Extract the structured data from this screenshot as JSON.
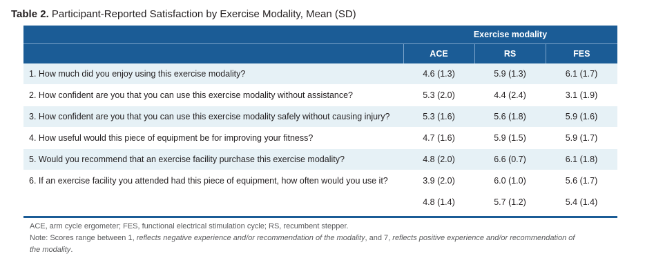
{
  "caption": {
    "label": "Table 2.",
    "title": " Participant-Reported Satisfaction by Exercise Modality, Mean (SD)"
  },
  "header": {
    "group_label": "Exercise modality",
    "columns": [
      "ACE",
      "RS",
      "FES"
    ]
  },
  "rows": [
    {
      "question": "1. How much did you enjoy using this exercise modality?",
      "values": [
        "4.6 (1.3)",
        "5.9 (1.3)",
        "6.1 (1.7)"
      ]
    },
    {
      "question": "2. How confident are you that you can use this exercise modality without assistance?",
      "values": [
        "5.3 (2.0)",
        "4.4 (2.4)",
        "3.1 (1.9)"
      ]
    },
    {
      "question": "3. How confident are you that you can use this exercise modality safely without causing injury?",
      "values": [
        "5.3 (1.6)",
        "5.6 (1.8)",
        "5.9 (1.6)"
      ]
    },
    {
      "question": "4. How useful would this piece of equipment be for improving your fitness?",
      "values": [
        "4.7 (1.6)",
        "5.9 (1.5)",
        "5.9 (1.7)"
      ]
    },
    {
      "question": "5. Would you recommend that an exercise facility purchase this exercise modality?",
      "values": [
        "4.8 (2.0)",
        "6.6 (0.7)",
        "6.1 (1.8)"
      ]
    },
    {
      "question": "6. If an exercise facility you attended had this piece of equipment, how often would you use it?",
      "values": [
        "3.9 (2.0)",
        "6.0 (1.0)",
        "5.6 (1.7)"
      ]
    }
  ],
  "totals": [
    "4.8 (1.4)",
    "5.7 (1.2)",
    "5.4 (1.4)"
  ],
  "notes": {
    "abbreviations": "ACE, arm cycle ergometer; FES, functional electrical stimulation cycle; RS, recumbent stepper.",
    "note_prefix": "Note: Scores range between 1, ",
    "note_italic_1": "reflects negative experience and/or recommendation of the modality",
    "note_mid": ", and 7, ",
    "note_italic_2": "reflects positive experience and/or recommendation of the modality",
    "note_end": "."
  },
  "colors": {
    "header_blue": "#1b5c96",
    "row_tint": "#e6f1f6",
    "note_gray": "#58595b"
  }
}
